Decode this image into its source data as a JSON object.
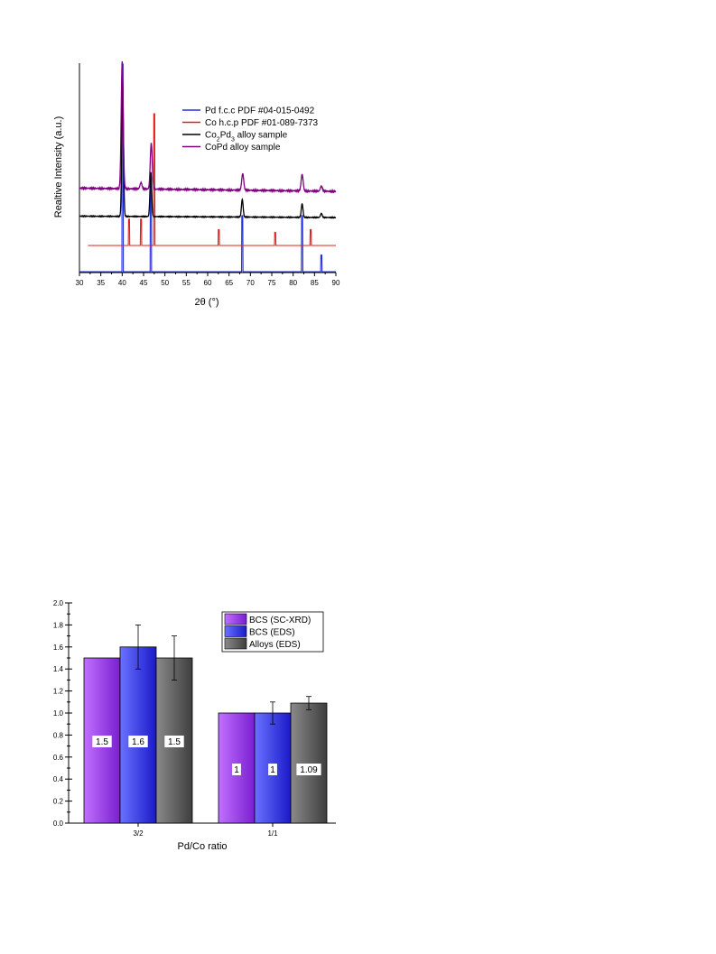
{
  "chart_data": [
    {
      "type": "line",
      "xlabel": "2θ (°)",
      "ylabel": "Realtive Intensity (a.u.)",
      "xlim": [
        30,
        90
      ],
      "xticks": [
        "30",
        "35",
        "40",
        "45",
        "50",
        "55",
        "60",
        "65",
        "70",
        "75",
        "80",
        "85",
        "90"
      ],
      "yticks": "none",
      "legend_position": "top-right",
      "series": [
        {
          "name": "Pd f.c.c PDF #04-015-0492",
          "color": "#1f2fe0",
          "style": "stick",
          "peaks": [
            [
              40.1,
              1.0
            ],
            [
              46.7,
              0.45
            ],
            [
              68.1,
              0.27
            ],
            [
              82.1,
              0.27
            ],
            [
              86.6,
              0.08
            ]
          ]
        },
        {
          "name": "Co h.c.p PDF #01-089-7373",
          "color": "#e0201c",
          "style": "stick",
          "peaks": [
            [
              41.6,
              0.2
            ],
            [
              44.4,
              0.2
            ],
            [
              47.5,
              1.0
            ],
            [
              62.6,
              0.12
            ],
            [
              75.8,
              0.1
            ],
            [
              84.1,
              0.12
            ]
          ]
        },
        {
          "name_parts": [
            "Co",
            "2",
            "Pd",
            "3",
            " alloy sample"
          ],
          "color": "#000000",
          "style": "pattern",
          "peaks": [
            [
              40.1,
              1.0
            ],
            [
              46.7,
              0.33
            ],
            [
              68.1,
              0.13
            ],
            [
              82.1,
              0.1
            ],
            [
              86.6,
              0.03
            ]
          ]
        },
        {
          "name": "CoPd alloy sample",
          "color": "#800080",
          "style": "pattern",
          "peaks": [
            [
              40.0,
              1.0
            ],
            [
              44.4,
              0.05
            ],
            [
              46.8,
              0.36
            ],
            [
              68.2,
              0.13
            ],
            [
              82.1,
              0.13
            ],
            [
              86.6,
              0.04
            ]
          ]
        }
      ]
    },
    {
      "type": "bar",
      "xlabel": "Pd/Co ratio",
      "ylabel": "",
      "ylim": [
        0,
        2.0
      ],
      "yticks": [
        "0.0",
        "0.2",
        "0.4",
        "0.6",
        "0.8",
        "1.0",
        "1.2",
        "1.4",
        "1.6",
        "1.8",
        "2.0"
      ],
      "categories": [
        "3/2",
        "1/1"
      ],
      "legend_position": "top-right",
      "series": [
        {
          "name": "BCS (SC-XRD)",
          "values": [
            1.5,
            1.0
          ],
          "errors": [
            null,
            null
          ],
          "labels": [
            "1.5",
            "1"
          ],
          "color_light": "#c070ff",
          "color_dark": "#7a1fd0"
        },
        {
          "name": "BCS (EDS)",
          "values": [
            1.6,
            1.0
          ],
          "errors": [
            0.2,
            0.1
          ],
          "labels": [
            "1.6",
            "1"
          ],
          "color_light": "#6a72ff",
          "color_dark": "#1a1ac8"
        },
        {
          "name": "Alloys (EDS)",
          "values": [
            1.5,
            1.09
          ],
          "errors": [
            0.2,
            0.06
          ],
          "labels": [
            "1.5",
            "1.09"
          ],
          "color_light": "#8a8a8a",
          "color_dark": "#3e3e3e"
        }
      ]
    }
  ]
}
